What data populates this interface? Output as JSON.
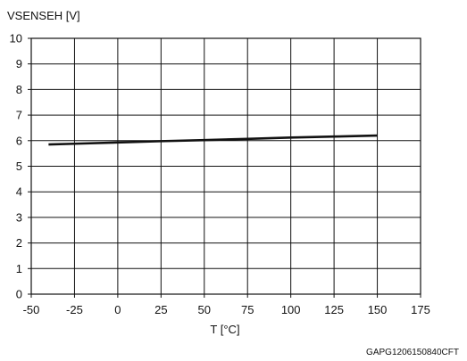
{
  "chart_data": {
    "type": "line",
    "title": "",
    "xlabel": "T [°C]",
    "ylabel": "VSENSEH [V]",
    "xlim": [
      -50,
      175
    ],
    "ylim": [
      0,
      10
    ],
    "x_ticks": [
      "-50",
      "-25",
      "0",
      "25",
      "50",
      "75",
      "100",
      "125",
      "150",
      "175"
    ],
    "y_ticks": [
      "0",
      "1",
      "2",
      "3",
      "4",
      "5",
      "6",
      "7",
      "8",
      "9",
      "10"
    ],
    "grid": true,
    "series": [
      {
        "x": [
          -40,
          -25,
          0,
          25,
          50,
          75,
          100,
          125,
          150
        ],
        "y": [
          5.85,
          5.88,
          5.93,
          5.98,
          6.02,
          6.07,
          6.12,
          6.16,
          6.2
        ]
      }
    ],
    "colors": {
      "line": "#111111",
      "grid": "#111111",
      "background": "#ffffff"
    },
    "figure_code": "GAPG1206150840CFT"
  }
}
